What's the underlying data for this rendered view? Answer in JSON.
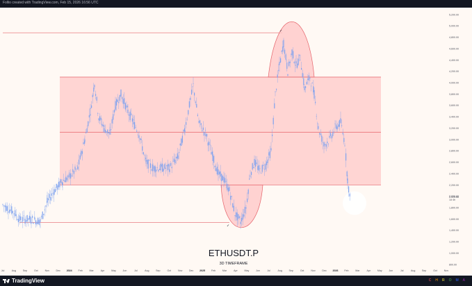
{
  "header": {
    "caption": "Follio created with TradingView.com, Feb 15, 2026 16:56 UTC"
  },
  "chart": {
    "symbol": "ETHUSDT.P",
    "timeframe": "3D TIMEFRAME",
    "current_price": "2,025.68",
    "current_price_sub": "1d 4h",
    "colors": {
      "background": "#fff9f4",
      "range_fill": "#ffc8c8",
      "range_line": "#e5636a",
      "candle": "#7ea2ef",
      "highlight_circle": "#ffffff"
    },
    "price_axis": [
      "5,200.00",
      "5,000.00",
      "4,800.00",
      "4,600.00",
      "4,400.00",
      "4,200.00",
      "4,000.00",
      "3,800.00",
      "3,600.00",
      "3,400.00",
      "3,200.00",
      "3,000.00",
      "2,800.00",
      "2,600.00",
      "2,400.00",
      "2,200.00",
      "2,000.00",
      "1,800.00",
      "1,600.00",
      "1,400.00",
      "1,200.00",
      "1,000.00",
      "800.00"
    ],
    "time_axis": [
      "Jul",
      "Aug",
      "Sep",
      "Oct",
      "Nov",
      "Dec",
      "2024",
      "Feb",
      "Mar",
      "Apr",
      "May",
      "Jun",
      "Jul",
      "Aug",
      "Sep",
      "Oct",
      "Nov",
      "Dec",
      "2025",
      "Feb",
      "Mar",
      "Apr",
      "May",
      "Jun",
      "Jul",
      "Aug",
      "Sep",
      "Oct",
      "Nov",
      "Dec",
      "2026",
      "Feb",
      "Mar",
      "Apr",
      "May",
      "Jun",
      "Jul",
      "Aug",
      "Sep",
      "Oct",
      "Nov"
    ],
    "year_labels": [
      "2024",
      "2025",
      "2026"
    ],
    "levels": {
      "top_line": 4880,
      "range_high": 4100,
      "range_mid": 3130,
      "range_low": 2200,
      "bottom_line": 1540
    },
    "checkmark": "✓"
  },
  "footer": {
    "brand": "TradingView",
    "chroma_letters": [
      {
        "letter": "C",
        "color": "#f7525f"
      },
      {
        "letter": "H",
        "color": "#ff9800"
      },
      {
        "letter": "R",
        "color": "#ffeb3b"
      },
      {
        "letter": "O",
        "color": "#4caf50"
      },
      {
        "letter": "M",
        "color": "#2962ff"
      },
      {
        "letter": "A",
        "color": "#9c27b0"
      }
    ]
  }
}
